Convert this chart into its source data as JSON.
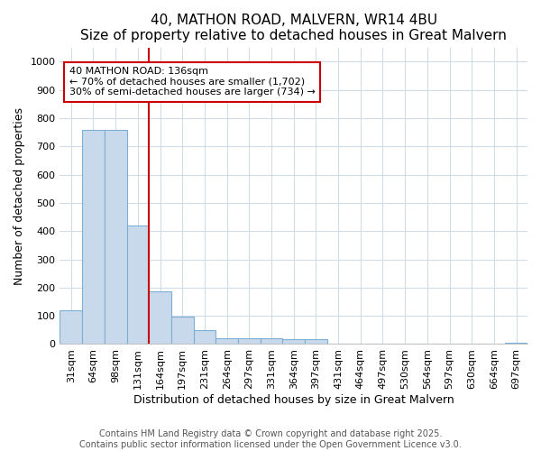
{
  "title": "40, MATHON ROAD, MALVERN, WR14 4BU",
  "subtitle": "Size of property relative to detached houses in Great Malvern",
  "xlabel": "Distribution of detached houses by size in Great Malvern",
  "ylabel": "Number of detached properties",
  "categories": [
    "31sqm",
    "64sqm",
    "98sqm",
    "131sqm",
    "164sqm",
    "197sqm",
    "231sqm",
    "264sqm",
    "297sqm",
    "331sqm",
    "364sqm",
    "397sqm",
    "431sqm",
    "464sqm",
    "497sqm",
    "530sqm",
    "564sqm",
    "597sqm",
    "630sqm",
    "664sqm",
    "697sqm"
  ],
  "bar_heights": [
    120,
    760,
    760,
    420,
    188,
    97,
    48,
    22,
    22,
    20,
    17,
    17,
    0,
    0,
    0,
    0,
    0,
    0,
    0,
    0,
    5
  ],
  "bar_color": "#c9d9ec",
  "bar_edge_color": "#7bafd4",
  "property_line_color": "#cc0000",
  "annotation_text": "40 MATHON ROAD: 136sqm\n← 70% of detached houses are smaller (1,702)\n30% of semi-detached houses are larger (734) →",
  "annotation_box_facecolor": "#ffffff",
  "annotation_box_edgecolor": "#cc0000",
  "ylim": [
    0,
    1050
  ],
  "yticks": [
    0,
    100,
    200,
    300,
    400,
    500,
    600,
    700,
    800,
    900,
    1000
  ],
  "figure_bg": "#ffffff",
  "plot_bg": "#ffffff",
  "grid_color": "#d0dce8",
  "title_fontsize": 11,
  "subtitle_fontsize": 9,
  "xlabel_fontsize": 9,
  "ylabel_fontsize": 9,
  "tick_fontsize": 8,
  "annotation_fontsize": 8,
  "footer_fontsize": 7,
  "footer_text": "Contains HM Land Registry data © Crown copyright and database right 2025.\nContains public sector information licensed under the Open Government Licence v3.0."
}
